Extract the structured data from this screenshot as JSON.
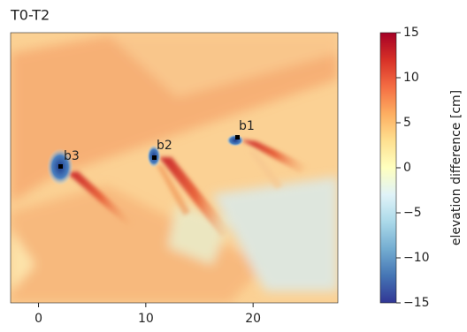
{
  "chart_data": {
    "type": "heatmap",
    "title": "T0-T2",
    "xlim": [
      -2.6,
      27.9
    ],
    "xticks": [
      0,
      10,
      20
    ],
    "annotations": [
      "b1",
      "b2",
      "b3"
    ],
    "colorbar": {
      "label": "elevation difference [cm]",
      "colormap": "RdYlBu_r",
      "lim": [
        -15,
        15
      ],
      "ticks": [
        15,
        10,
        5,
        0,
        {
          "value": -5,
          "label": "−5"
        },
        {
          "value": -10,
          "label": "−10"
        },
        {
          "value": -15,
          "label": "−15"
        }
      ]
    }
  }
}
